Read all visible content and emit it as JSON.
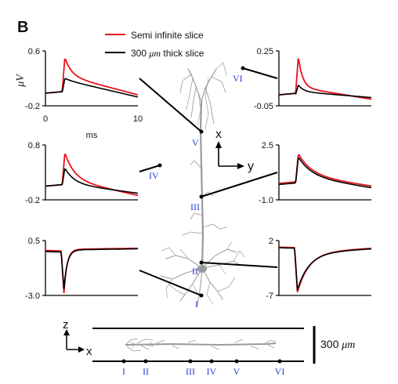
{
  "figure": {
    "panel_label": "B",
    "legend": [
      {
        "label": "Semi infinite slice",
        "color": "#e8121b"
      },
      {
        "label_prefix": "300 ",
        "label_unit": "μm",
        "label_suffix": " thick slice",
        "color": "#000000"
      }
    ],
    "x_axis": {
      "ticks": [
        "0",
        "10"
      ],
      "unit": "ms"
    },
    "y_unit": "μV",
    "compass": {
      "x": "x",
      "y": "y",
      "z": "z"
    },
    "scale_bar": {
      "value": "300 ",
      "unit": "μm"
    },
    "positions": [
      "I",
      "II",
      "III",
      "IV",
      "V",
      "VI"
    ],
    "panels": [
      {
        "id": "V",
        "side": "left",
        "row": 0,
        "ymax": "0.6",
        "ymin": "-0.2"
      },
      {
        "id": "VI",
        "side": "right",
        "row": 0,
        "ymax": "0.25",
        "ymin": "-0.05"
      },
      {
        "id": "IV",
        "side": "left",
        "row": 1,
        "ymax": "0.8",
        "ymin": "-0.2"
      },
      {
        "id": "III",
        "side": "right",
        "row": 1,
        "ymax": "2.5",
        "ymin": "-1.0"
      },
      {
        "id": "I",
        "side": "left",
        "row": 2,
        "ymax": "0.5",
        "ymin": "-3.0"
      },
      {
        "id": "II",
        "side": "right",
        "row": 2,
        "ymax": "2",
        "ymin": "-7"
      }
    ],
    "colors": {
      "red": "#e8121b",
      "black": "#000000",
      "neuron": "#9a9a9a",
      "roman": "#2a3fd6"
    }
  }
}
